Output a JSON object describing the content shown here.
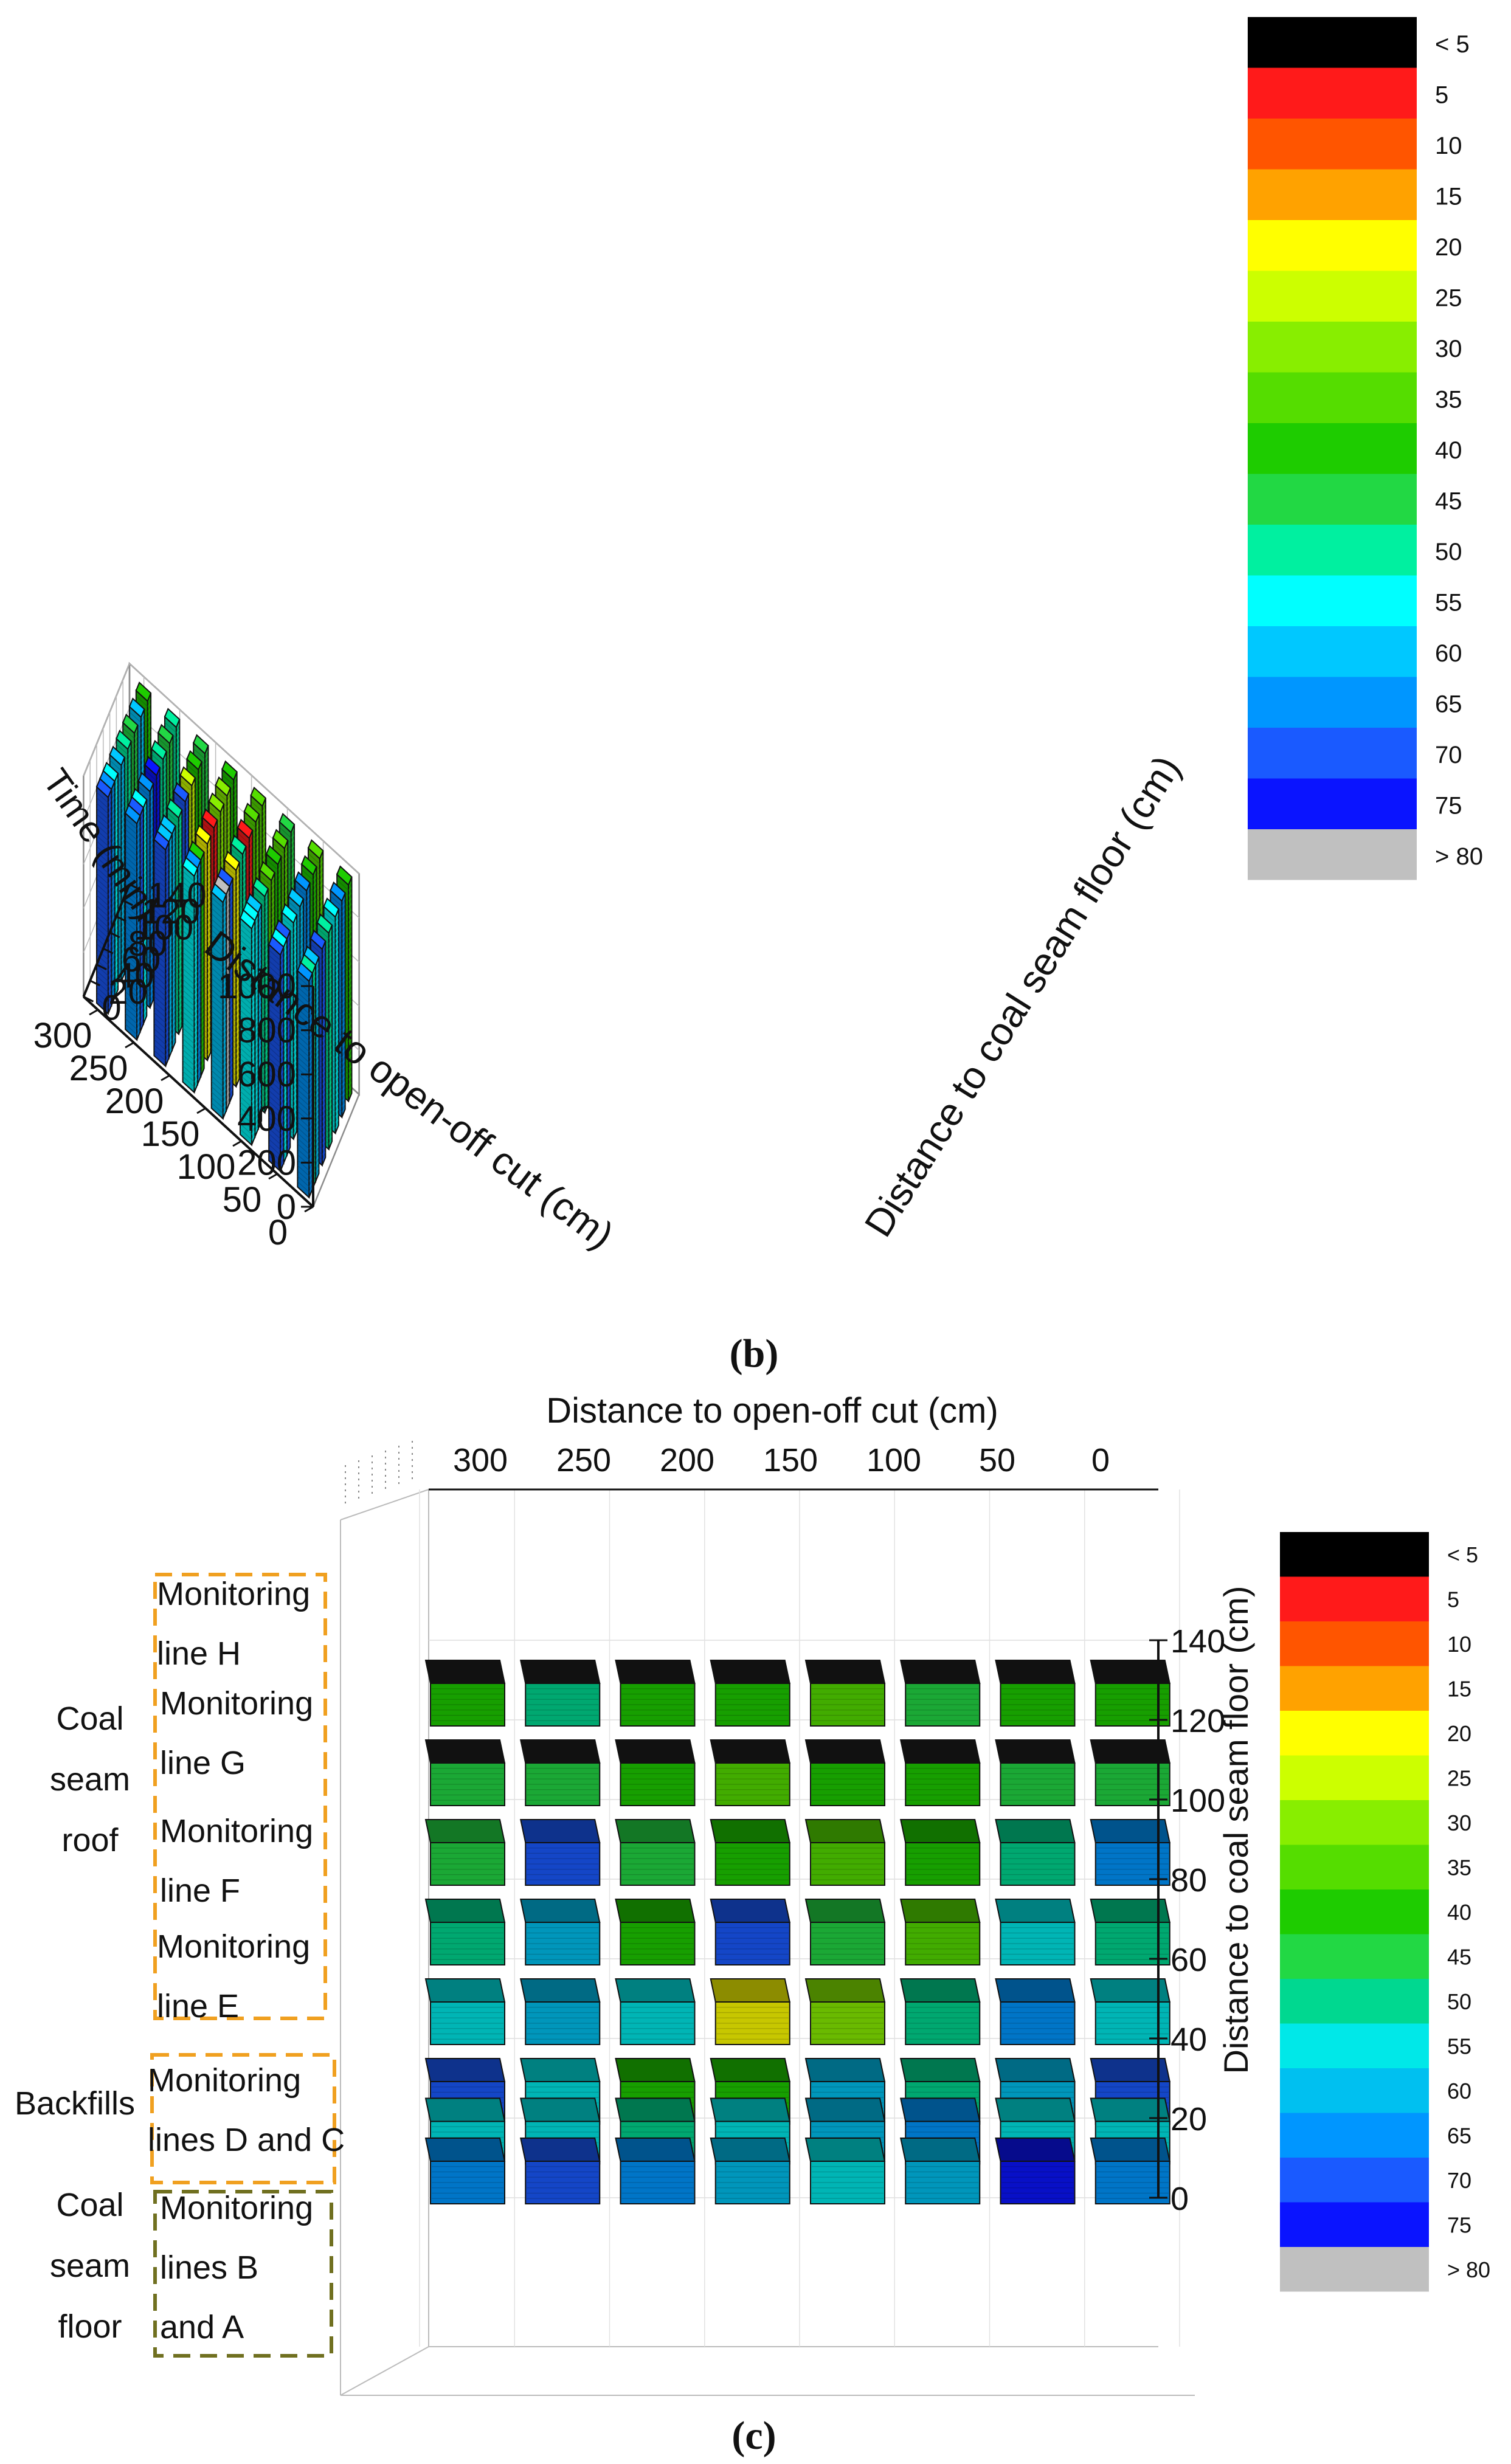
{
  "figure": {
    "panel_b_caption": "(b)",
    "panel_c_caption": "(c)"
  },
  "colors": {
    "accent_green": "#1ecc00",
    "frame": "#8c8c8c",
    "bar_outline": "#111111",
    "dashed_orange": "#f0a020",
    "dashed_olive": "#707020"
  },
  "chart_data": [
    {
      "type": "3d-bar",
      "panel": "b",
      "x_label": "Distance to open-off cut (cm)",
      "x_ticks": [
        "0",
        "50",
        "100",
        "150",
        "200",
        "250",
        "300"
      ],
      "y_label": "Distance to coal seam floor (cm)",
      "y_ticks": [
        "0",
        "20",
        "40",
        "60",
        "80",
        "100",
        "120",
        "140"
      ],
      "z_label": "Time (min)",
      "z_ticks": [
        "0",
        "200",
        "400",
        "600",
        "800",
        "1000"
      ],
      "x_values": [
        0,
        40,
        80,
        120,
        160,
        200,
        240,
        280
      ],
      "y_values": [
        10,
        20,
        30,
        50,
        70,
        90,
        110,
        130
      ],
      "z_max": 1000,
      "value_unit": "legend class",
      "values_by_y": [
        [
          65,
          70,
          55,
          60,
          55,
          70,
          65,
          70
        ],
        [
          50,
          55,
          55,
          80,
          65,
          60,
          70,
          65
        ],
        [
          60,
          70,
          60,
          70,
          40,
          60,
          55,
          55
        ],
        [
          70,
          55,
          50,
          20,
          20,
          50,
          65,
          60
        ],
        [
          50,
          60,
          35,
          50,
          5,
          70,
          75,
          50
        ],
        [
          55,
          65,
          40,
          5,
          30,
          25,
          50,
          45
        ],
        [
          65,
          40,
          35,
          35,
          30,
          40,
          45,
          60
        ],
        [
          40,
          35,
          45,
          35,
          40,
          45,
          50,
          40
        ]
      ],
      "legend": {
        "labels": [
          "< 5",
          "5",
          "10",
          "15",
          "20",
          "25",
          "30",
          "35",
          "40",
          "45",
          "50",
          "55",
          "60",
          "65",
          "70",
          "75",
          "> 80"
        ],
        "colors": [
          "#000000",
          "#ff1a1a",
          "#ff5500",
          "#ffa200",
          "#ffff00",
          "#ccff00",
          "#88ee00",
          "#55dd00",
          "#1ecc00",
          "#22d844",
          "#00f0a0",
          "#00ffff",
          "#00c8ff",
          "#0096ff",
          "#1a5aff",
          "#0a14ff",
          "#c0c0c0"
        ]
      }
    },
    {
      "type": "3d-bar",
      "panel": "c",
      "view": "side view of monitoring lines",
      "x_label": "Distance to open-off cut (cm)",
      "x_ticks": [
        "300",
        "250",
        "200",
        "150",
        "100",
        "50",
        "0"
      ],
      "y_label": "Distance to coal seam floor (cm)",
      "y_ticks": [
        "0",
        "20",
        "40",
        "60",
        "80",
        "100",
        "120",
        "140"
      ],
      "row_heights": [
        0,
        10,
        20,
        40,
        60,
        80,
        100,
        120
      ],
      "values_by_row": [
        [
          65,
          70,
          65,
          60,
          55,
          60,
          75,
          65
        ],
        [
          55,
          55,
          50,
          55,
          60,
          65,
          55,
          55
        ],
        [
          70,
          55,
          40,
          40,
          60,
          50,
          60,
          70
        ],
        [
          55,
          60,
          55,
          20,
          30,
          50,
          65,
          55
        ],
        [
          50,
          60,
          40,
          70,
          45,
          35,
          55,
          50
        ],
        [
          45,
          70,
          45,
          40,
          35,
          40,
          50,
          65
        ],
        [
          45,
          45,
          40,
          35,
          40,
          40,
          45,
          45
        ],
        [
          40,
          50,
          40,
          40,
          35,
          45,
          40,
          40
        ]
      ],
      "top_fill": "#111111",
      "group_labels": [
        {
          "group": "Coal seam roof",
          "lines": [
            "Coal",
            "seam",
            "roof"
          ]
        },
        {
          "group": "Backfills",
          "lines": [
            "Backfills"
          ]
        },
        {
          "group": "Coal seam floor",
          "lines": [
            "Coal",
            "seam",
            "floor"
          ]
        }
      ],
      "monitoring_labels": [
        [
          "Monitoring",
          "line H"
        ],
        [
          "Monitoring",
          "line G"
        ],
        [
          "Monitoring",
          "line F"
        ],
        [
          "Monitoring",
          "line E"
        ],
        [
          "Monitoring",
          "lines D and C"
        ],
        [
          "Monitoring",
          "lines B",
          "and A"
        ]
      ],
      "legend": {
        "labels": [
          "< 5",
          "5",
          "10",
          "15",
          "20",
          "25",
          "30",
          "35",
          "40",
          "45",
          "50",
          "55",
          "60",
          "65",
          "70",
          "75",
          "> 80"
        ],
        "colors": [
          "#000000",
          "#ff1a1a",
          "#ff5500",
          "#ffa200",
          "#ffff00",
          "#ccff00",
          "#88ee00",
          "#55dd00",
          "#1ecc00",
          "#22d844",
          "#00d890",
          "#00e8e8",
          "#00c0f0",
          "#0096ff",
          "#1a5aff",
          "#0a14ff",
          "#c0c0c0"
        ]
      }
    }
  ]
}
